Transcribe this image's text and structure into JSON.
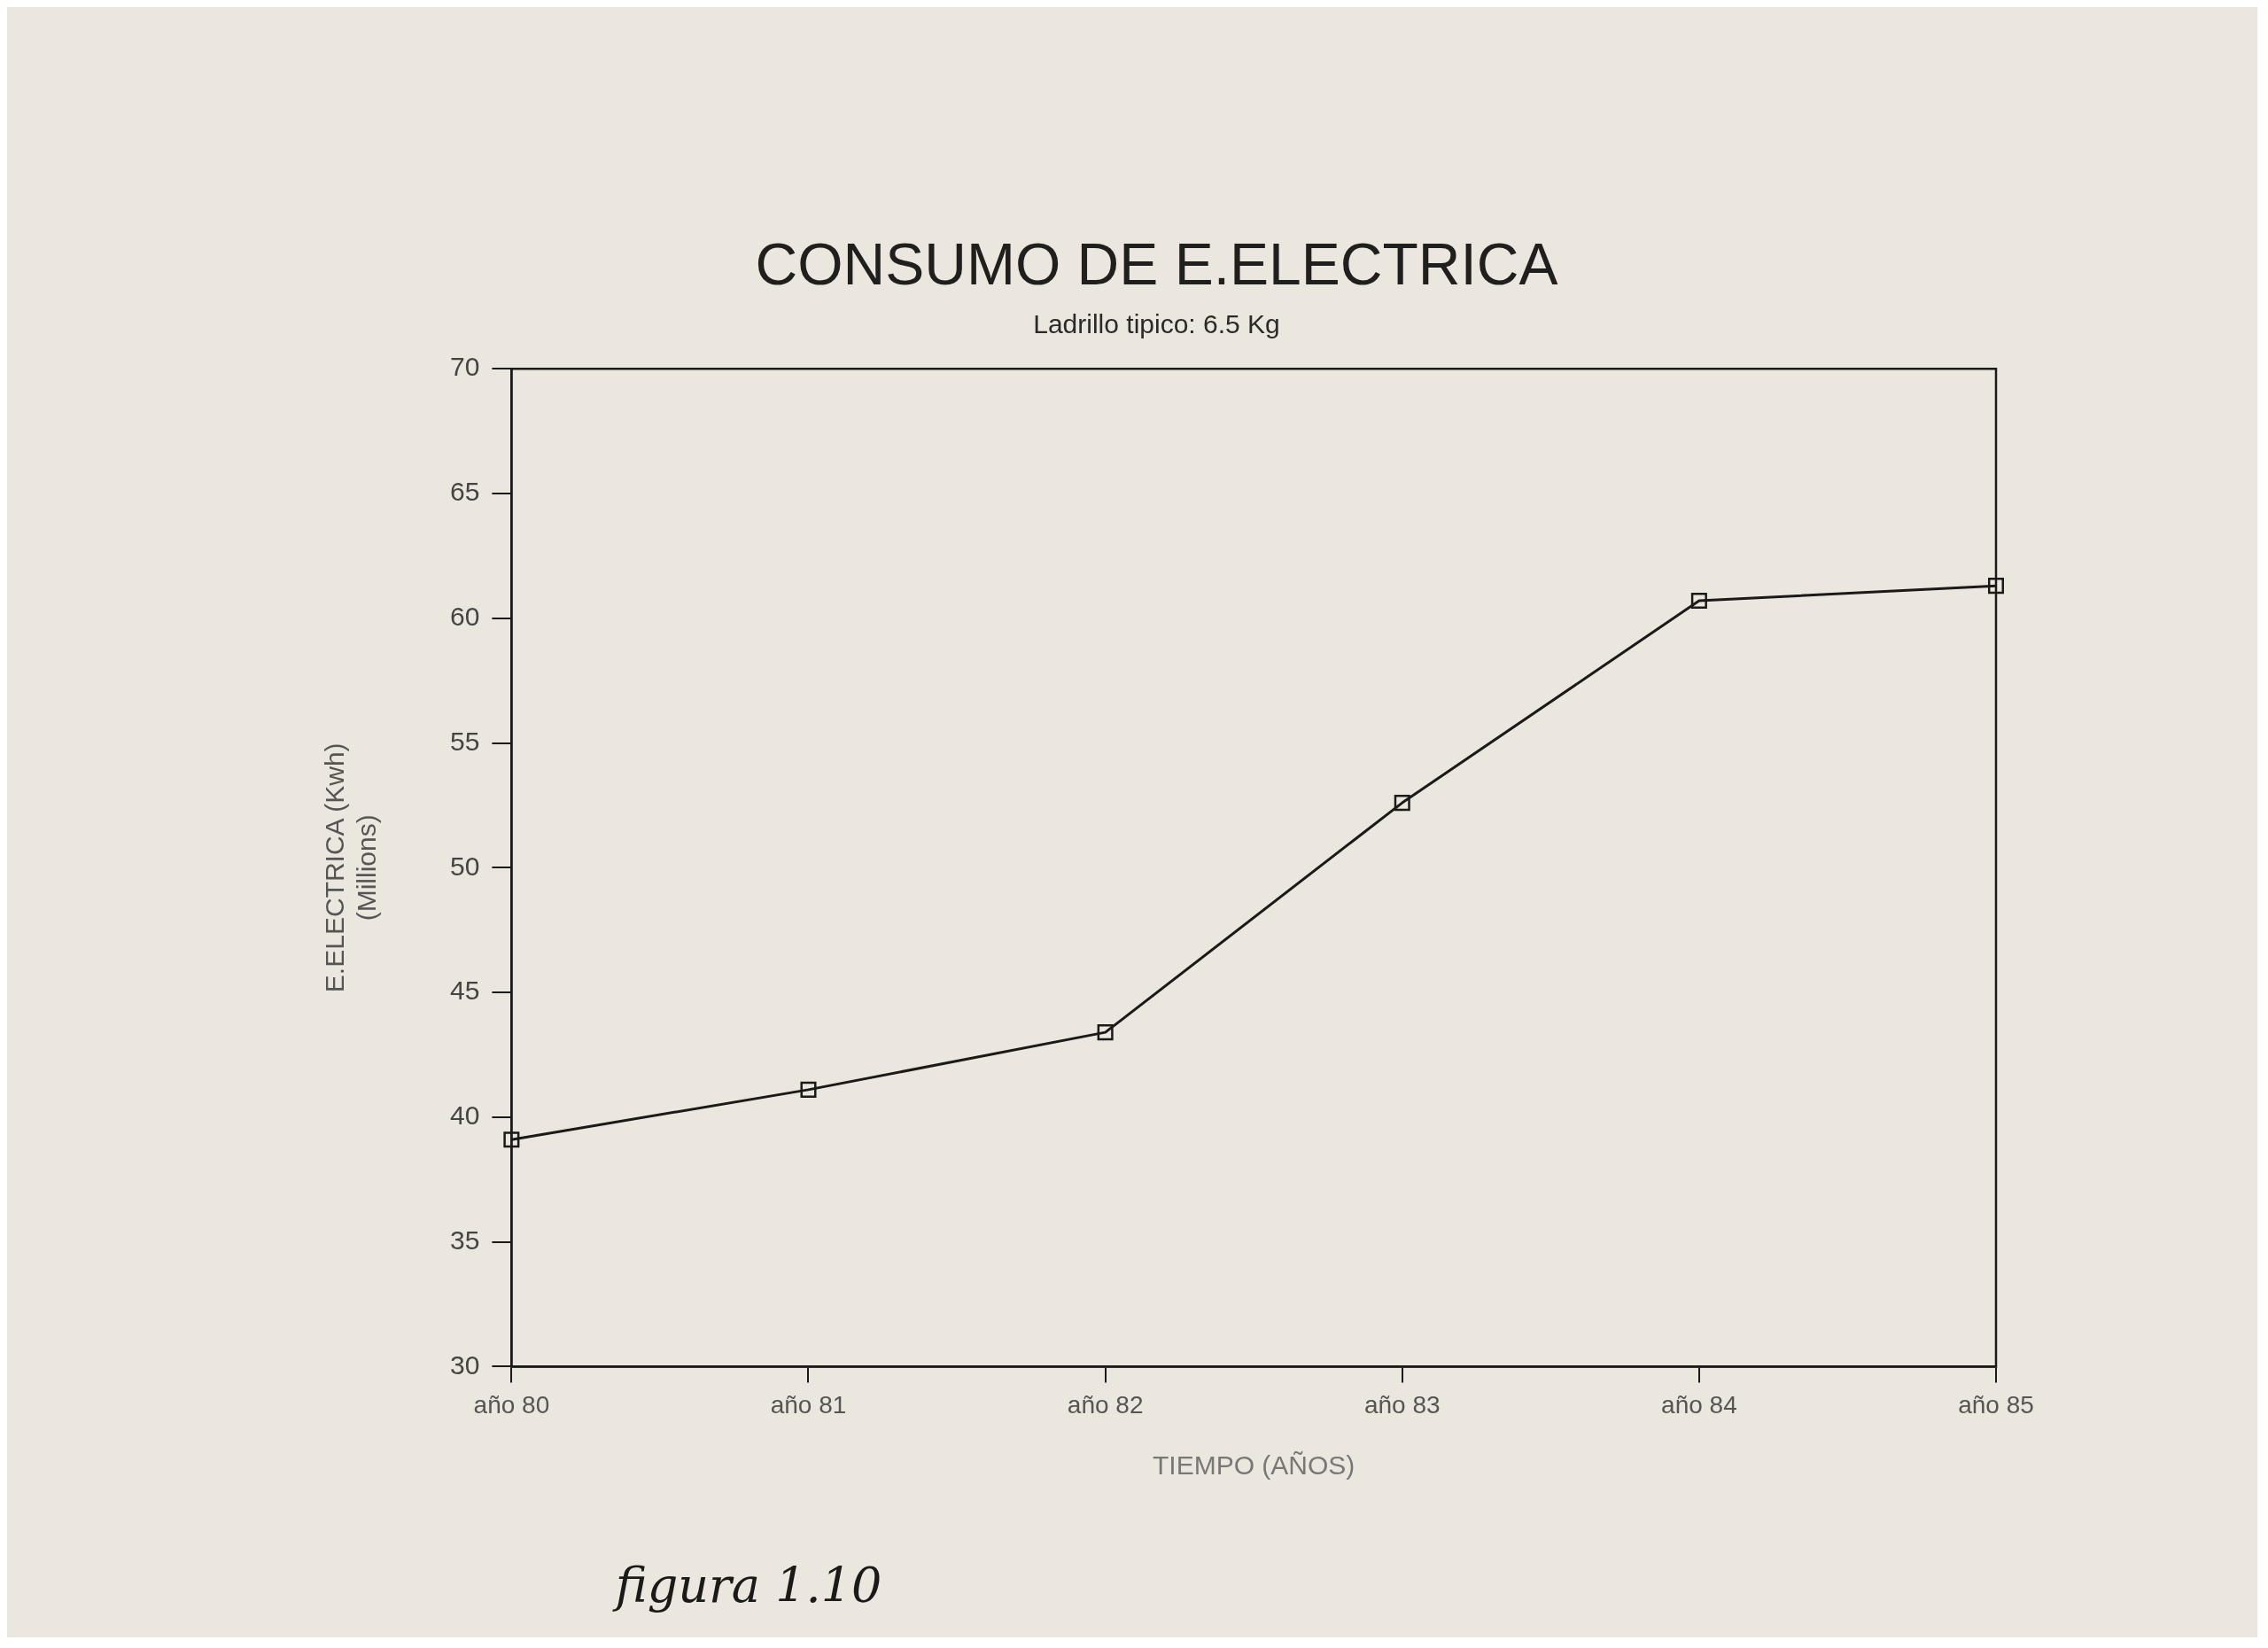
{
  "chart_data": {
    "type": "line",
    "title": "CONSUMO DE E.ELECTRICA",
    "subtitle": "Ladrillo tipico: 6.5 Kg",
    "xlabel": "TIEMPO (AÑOS)",
    "ylabel": "E.ELECTRICA (Kwh)\n(Millions)",
    "categories": [
      "año 80",
      "año 81",
      "año 82",
      "año 83",
      "año 84",
      "año 85"
    ],
    "values": [
      39.1,
      41.1,
      43.4,
      52.6,
      60.7,
      61.3
    ],
    "color": "#1a1a1a",
    "ylim": [
      30,
      70
    ],
    "yticks": [
      30,
      35,
      40,
      45,
      50,
      55,
      60,
      65,
      70
    ],
    "grid": false,
    "legend": false,
    "marker": "square",
    "line_style": "solid",
    "annotations": [
      "figura 1.10"
    ]
  }
}
